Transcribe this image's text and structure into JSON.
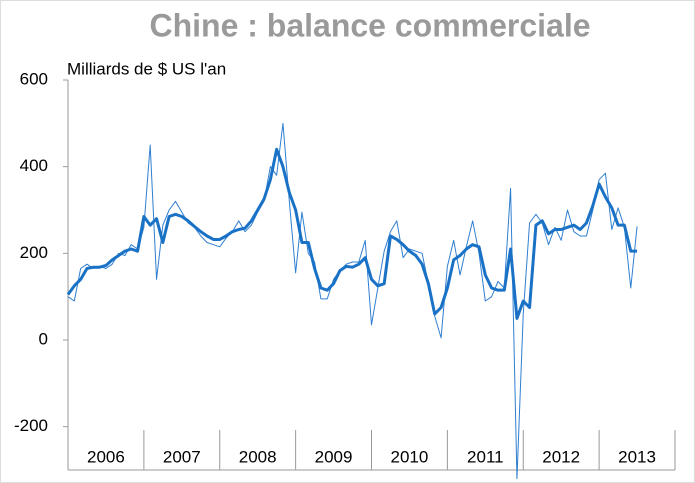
{
  "chart_data": {
    "type": "line",
    "title": "Chine : balance commerciale",
    "y_label": "Milliards de $ US l'an",
    "categories": [
      "2006",
      "2007",
      "2008",
      "2009",
      "2010",
      "2011",
      "2012",
      "2013"
    ],
    "xlim": [
      2006,
      2014
    ],
    "xticks": [
      2006,
      2007,
      2008,
      2009,
      2010,
      2011,
      2012,
      2013,
      2014
    ],
    "ylim": [
      -300,
      600
    ],
    "yticks": [
      -200,
      0,
      200,
      400,
      600
    ],
    "x": [
      2006.0,
      2006.083,
      2006.167,
      2006.25,
      2006.333,
      2006.417,
      2006.5,
      2006.583,
      2006.667,
      2006.75,
      2006.833,
      2006.917,
      2007.0,
      2007.083,
      2007.167,
      2007.25,
      2007.333,
      2007.417,
      2007.5,
      2007.583,
      2007.667,
      2007.75,
      2007.833,
      2007.917,
      2008.0,
      2008.083,
      2008.167,
      2008.25,
      2008.333,
      2008.417,
      2008.5,
      2008.583,
      2008.667,
      2008.75,
      2008.833,
      2008.917,
      2009.0,
      2009.083,
      2009.167,
      2009.25,
      2009.333,
      2009.417,
      2009.5,
      2009.583,
      2009.667,
      2009.75,
      2009.833,
      2009.917,
      2010.0,
      2010.083,
      2010.167,
      2010.25,
      2010.333,
      2010.417,
      2010.5,
      2010.583,
      2010.667,
      2010.75,
      2010.833,
      2010.917,
      2011.0,
      2011.083,
      2011.167,
      2011.25,
      2011.333,
      2011.417,
      2011.5,
      2011.583,
      2011.667,
      2011.75,
      2011.833,
      2011.917,
      2012.0,
      2012.083,
      2012.167,
      2012.25,
      2012.333,
      2012.417,
      2012.5,
      2012.583,
      2012.667,
      2012.75,
      2012.833,
      2012.917,
      2013.0,
      2013.083,
      2013.167,
      2013.25,
      2013.333,
      2013.417,
      2013.5
    ],
    "series": [
      {
        "color": "#2f7fd1",
        "width": 1,
        "values": [
          100,
          90,
          165,
          175,
          165,
          170,
          165,
          175,
          200,
          195,
          220,
          210,
          260,
          450,
          140,
          265,
          300,
          320,
          295,
          270,
          260,
          240,
          225,
          220,
          215,
          235,
          250,
          275,
          250,
          265,
          295,
          320,
          400,
          380,
          500,
          320,
          155,
          295,
          200,
          180,
          95,
          95,
          140,
          160,
          175,
          180,
          180,
          230,
          35,
          120,
          205,
          250,
          275,
          190,
          210,
          205,
          200,
          130,
          55,
          5,
          170,
          230,
          150,
          215,
          275,
          200,
          90,
          100,
          135,
          120,
          350,
          -320,
          60,
          270,
          290,
          270,
          220,
          260,
          230,
          300,
          250,
          240,
          240,
          300,
          370,
          385,
          255,
          305,
          260,
          120,
          262
        ]
      },
      {
        "color": "#1a72c6",
        "width": 3,
        "values": [
          105,
          125,
          140,
          165,
          168,
          168,
          172,
          185,
          195,
          205,
          210,
          205,
          285,
          265,
          280,
          225,
          285,
          290,
          285,
          275,
          262,
          250,
          240,
          232,
          232,
          240,
          250,
          255,
          258,
          275,
          300,
          325,
          370,
          440,
          400,
          340,
          300,
          225,
          225,
          165,
          120,
          115,
          130,
          160,
          170,
          168,
          175,
          190,
          140,
          125,
          130,
          240,
          232,
          220,
          205,
          195,
          175,
          130,
          60,
          75,
          120,
          185,
          195,
          210,
          220,
          215,
          150,
          120,
          115,
          115,
          210,
          50,
          90,
          75,
          265,
          275,
          245,
          255,
          255,
          260,
          265,
          255,
          270,
          310,
          360,
          330,
          305,
          265,
          265,
          205,
          205
        ]
      }
    ]
  }
}
